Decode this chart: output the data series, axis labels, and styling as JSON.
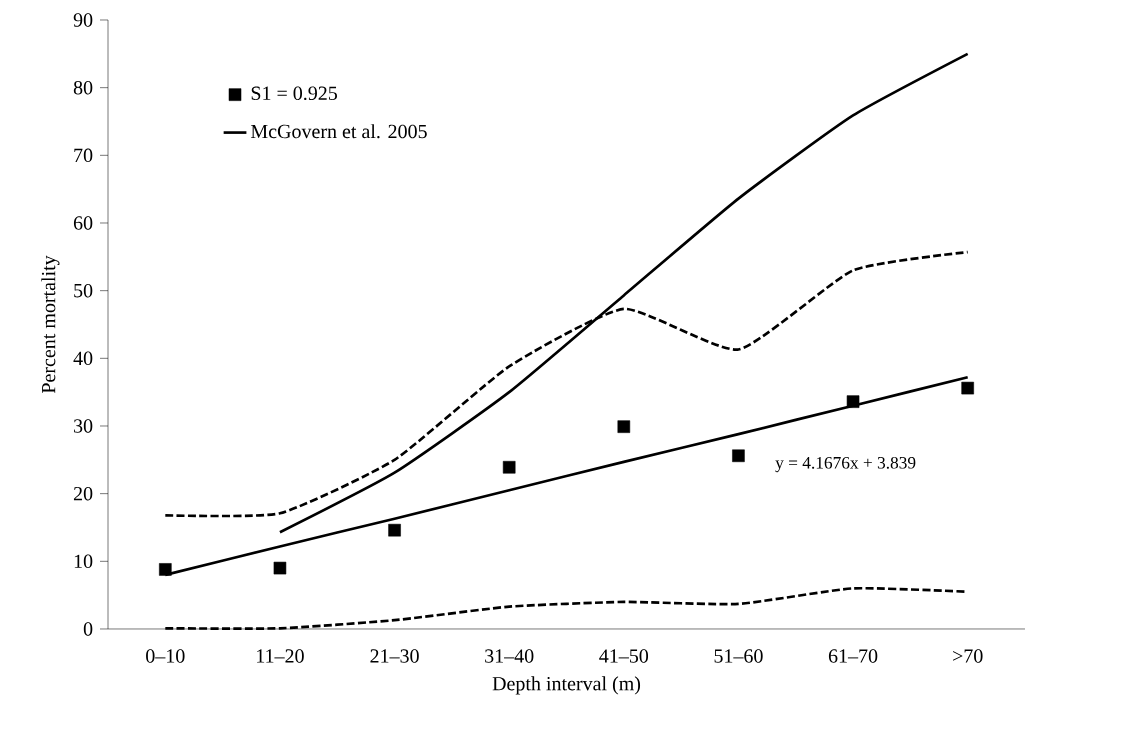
{
  "chart_data": {
    "type": "line",
    "xlabel": "Depth interval (m)",
    "ylabel": "Percent mortality",
    "categories": [
      "0–10",
      "11–20",
      "21–30",
      "31–40",
      "41–50",
      "51–60",
      "61–70",
      ">70"
    ],
    "ylim": [
      0,
      90
    ],
    "yticks": [
      0,
      10,
      20,
      30,
      40,
      50,
      60,
      70,
      80,
      90
    ],
    "grid": false,
    "legend": "top left",
    "annotations": [
      "y = 4.1676x + 3.839"
    ],
    "series": [
      {
        "name": "S1 = 0.925",
        "type": "scatter",
        "marker": "square",
        "color": "#000000",
        "values": [
          8.8,
          9.0,
          14.6,
          23.9,
          29.9,
          25.6,
          33.6,
          35.6
        ]
      },
      {
        "name": "McGovern et al. 2005",
        "line_style": "solid",
        "color": "#000000",
        "values": [
          null,
          14.3,
          23.1,
          35.0,
          49.3,
          63.6,
          75.9,
          85.0
        ]
      },
      {
        "type": "line",
        "line_style": "dashed",
        "color": "#000000",
        "values": [
          16.8,
          17.1,
          25.0,
          38.8,
          47.3,
          41.3,
          53.0,
          55.7
        ]
      },
      {
        "type": "line",
        "line_style": "dashed",
        "color": "#000000",
        "values": [
          0.1,
          0.1,
          1.3,
          3.3,
          4.0,
          3.7,
          6.0,
          5.5
        ]
      },
      {
        "line_style": "solid",
        "color": "#000000",
        "values": [
          8.0,
          12.2,
          16.3,
          20.5,
          24.7,
          28.8,
          33.0,
          37.2
        ]
      }
    ]
  }
}
